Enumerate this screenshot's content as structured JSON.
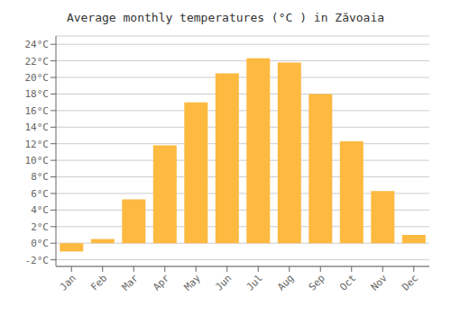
{
  "chart_data": {
    "type": "bar",
    "title": "Average monthly temperatures (°C ) in Zăvoaia",
    "categories": [
      "Jan",
      "Feb",
      "Mar",
      "Apr",
      "May",
      "Jun",
      "Jul",
      "Aug",
      "Sep",
      "Oct",
      "Nov",
      "Dec"
    ],
    "values": [
      -1.0,
      0.5,
      5.3,
      11.8,
      17.0,
      20.5,
      22.3,
      21.8,
      18.0,
      12.3,
      6.3,
      1.0
    ],
    "color": "#FDB940",
    "ylim": [
      -2.8,
      25.0
    ],
    "yticks": [
      {
        "value": -2,
        "label": "-2°C"
      },
      {
        "value": 0,
        "label": "0°C"
      },
      {
        "value": 2,
        "label": "2°C"
      },
      {
        "value": 4,
        "label": "4°C"
      },
      {
        "value": 6,
        "label": "6°C"
      },
      {
        "value": 8,
        "label": "8°C"
      },
      {
        "value": 10,
        "label": "10°C"
      },
      {
        "value": 12,
        "label": "12°C"
      },
      {
        "value": 14,
        "label": "14°C"
      },
      {
        "value": 16,
        "label": "16°C"
      },
      {
        "value": 18,
        "label": "18°C"
      },
      {
        "value": 20,
        "label": "20°C"
      },
      {
        "value": 22,
        "label": "22°C"
      },
      {
        "value": 24,
        "label": "24°C"
      }
    ],
    "grid": true
  }
}
